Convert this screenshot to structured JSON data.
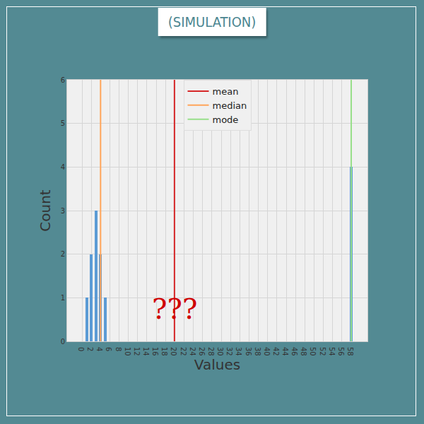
{
  "chart_data": {
    "type": "bar",
    "title": "(SIMULATION)",
    "x_label": "Values",
    "y_label": "Count",
    "x": [
      1,
      2,
      3,
      4,
      5,
      58
    ],
    "values": [
      1,
      2,
      3,
      2,
      1,
      4
    ],
    "color": "#5b9bd5",
    "vlines": [
      {
        "name": "mean",
        "color": "#d62728",
        "x": 19.92
      },
      {
        "name": "median",
        "color": "#ffa55a",
        "x": 4
      },
      {
        "name": "mode",
        "color": "#98df8a",
        "x": 58
      }
    ],
    "annotations": [
      {
        "text": "???",
        "x": 20,
        "y": 0.75,
        "color": "#d00000"
      }
    ],
    "xlim": [
      -3.2,
      61.5
    ],
    "xticks": [
      0,
      2,
      4,
      6,
      8,
      10,
      12,
      14,
      16,
      18,
      20,
      22,
      24,
      26,
      28,
      30,
      32,
      34,
      36,
      38,
      40,
      42,
      44,
      46,
      48,
      50,
      52,
      54,
      56,
      58
    ],
    "ylim": [
      0,
      6
    ],
    "yticks": [
      0,
      1,
      2,
      3,
      4,
      5,
      6
    ],
    "grid": true,
    "legend": "top"
  }
}
